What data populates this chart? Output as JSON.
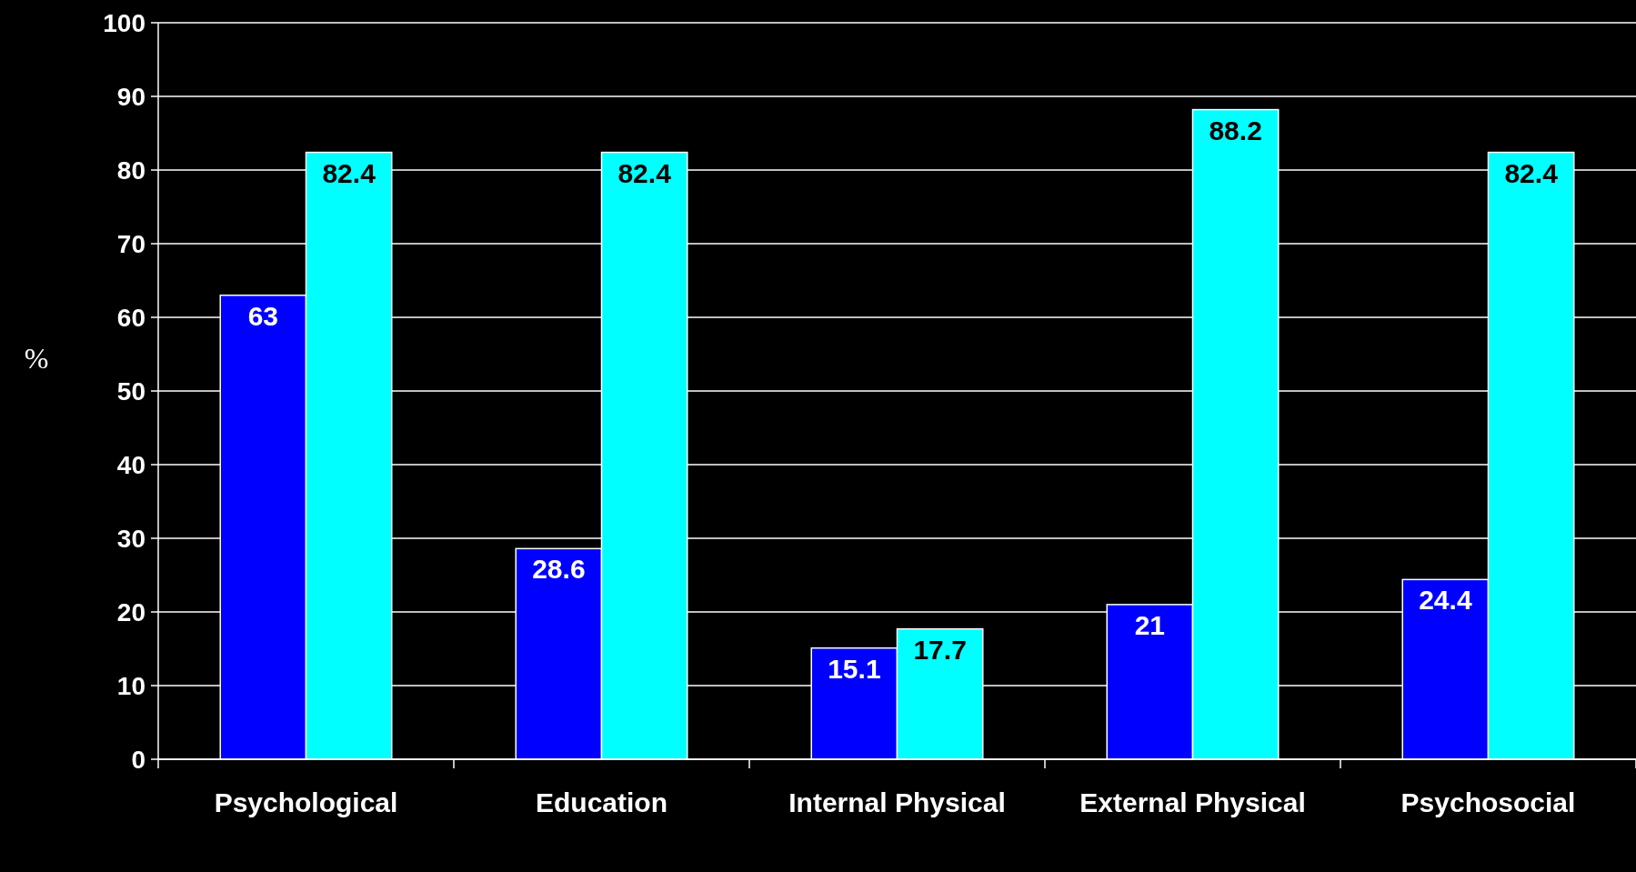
{
  "chart_data": {
    "type": "bar",
    "ylabel": "%",
    "categories": [
      "Psychological",
      "Education",
      "Internal Physical",
      "External Physical",
      "Psychosocial"
    ],
    "series": [
      {
        "color": "#0000ff",
        "values": [
          63,
          28.6,
          15.1,
          21,
          24.4
        ]
      },
      {
        "color": "#00ffff",
        "values": [
          82.4,
          82.4,
          17.7,
          88.2,
          82.4
        ]
      }
    ],
    "ylim": [
      0,
      100
    ],
    "yticks": [
      0,
      10,
      20,
      30,
      40,
      50,
      60,
      70,
      80,
      90,
      100
    ],
    "grid": "y",
    "data_labels": true
  }
}
